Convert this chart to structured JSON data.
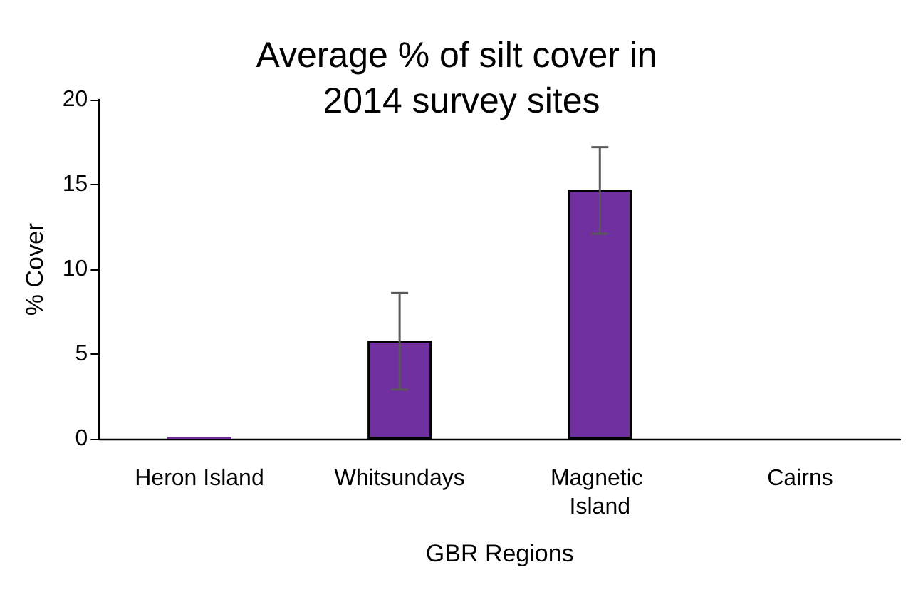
{
  "chart_data": {
    "type": "bar",
    "title": "Average % of silt cover in 2014 survey sites",
    "xlabel": "GBR Regions",
    "ylabel": "% Cover",
    "categories": [
      "Heron Island",
      "Whitsundays",
      "Magnetic Island",
      "Cairns"
    ],
    "values": [
      0.1,
      5.8,
      14.7,
      0
    ],
    "errors": [
      null,
      [
        2.9,
        8.6
      ],
      [
        12.1,
        17.2
      ],
      null
    ],
    "color": "#7030a0",
    "ylim": [
      0,
      20
    ],
    "yticks": [
      0,
      5,
      10,
      15,
      20
    ],
    "grid": false
  }
}
